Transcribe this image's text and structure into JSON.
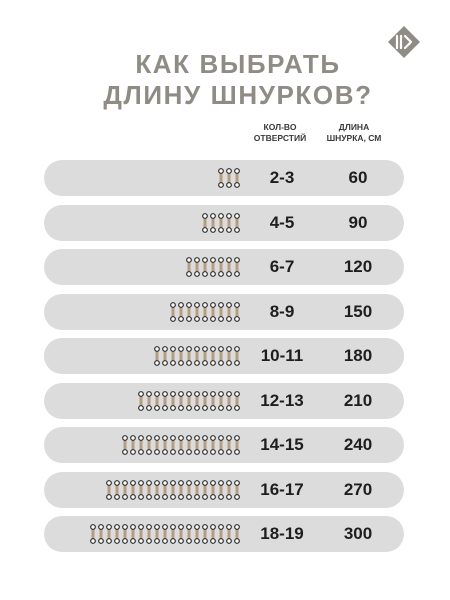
{
  "title": {
    "line1": "КАК ВЫБРАТЬ",
    "line2": "ДЛИНУ ШНУРКОВ?"
  },
  "headers": {
    "holes": {
      "line1": "КОЛ-ВО",
      "line2": "ОТВЕРСТИЙ"
    },
    "length": {
      "line1": "ДЛИНА",
      "line2": "ШНУРКА, СМ"
    }
  },
  "colors": {
    "title": "#8f8c86",
    "row_background": "#dcdcdc",
    "lace_fill": "#b59d7f",
    "eyelet": "#2b2b2b",
    "logo": "#8f8c86"
  },
  "icons": {
    "logo": "brand-logo-icon",
    "lace": "lace-eyelets-icon"
  },
  "rows": [
    {
      "holes": "2-3",
      "length": "60",
      "pairs": 3
    },
    {
      "holes": "4-5",
      "length": "90",
      "pairs": 5
    },
    {
      "holes": "6-7",
      "length": "120",
      "pairs": 7
    },
    {
      "holes": "8-9",
      "length": "150",
      "pairs": 9
    },
    {
      "holes": "10-11",
      "length": "180",
      "pairs": 11
    },
    {
      "holes": "12-13",
      "length": "210",
      "pairs": 13
    },
    {
      "holes": "14-15",
      "length": "240",
      "pairs": 15
    },
    {
      "holes": "16-17",
      "length": "270",
      "pairs": 17
    },
    {
      "holes": "18-19",
      "length": "300",
      "pairs": 19
    }
  ]
}
